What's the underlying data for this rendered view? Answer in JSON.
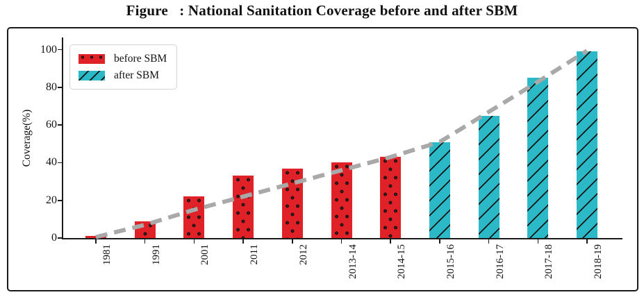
{
  "title": "Figure   : National Sanitation Coverage before and after SBM",
  "ylabel": "Coverage(%)",
  "colors": {
    "before_sbm": "#e02228",
    "after_sbm": "#2bb9c7",
    "trend": "#a9a9a9",
    "axis": "#1a1a1a"
  },
  "chart_data": {
    "type": "bar",
    "title": "Figure : National Sanitation Coverage before and after SBM",
    "categories": [
      "1981",
      "1991",
      "2001",
      "2011",
      "2012",
      "2013-14",
      "2014-15",
      "2015-16",
      "2016-17",
      "2017-18",
      "2018-19"
    ],
    "series": [
      {
        "name": "before SBM",
        "color": "#e02228",
        "pattern": "dots",
        "hatch": "o",
        "values": [
          1,
          9,
          22,
          33,
          37,
          40,
          43,
          null,
          null,
          null,
          null
        ]
      },
      {
        "name": "after SBM",
        "color": "#2bb9c7",
        "pattern": "hatch",
        "hatch": "/",
        "values": [
          null,
          null,
          null,
          null,
          null,
          null,
          null,
          51,
          65,
          85,
          99
        ]
      }
    ],
    "trend_line": {
      "style": "dashed",
      "color": "#a9a9a9",
      "values": [
        0.5,
        7,
        15,
        22,
        29,
        36,
        43,
        51,
        67,
        83,
        99.5
      ]
    },
    "xlabel": "",
    "ylabel": "Coverage(%)",
    "ylim": [
      0,
      100
    ],
    "yticks": [
      0,
      20,
      40,
      60,
      80,
      100
    ],
    "grid": false,
    "legend_position": "upper left"
  }
}
